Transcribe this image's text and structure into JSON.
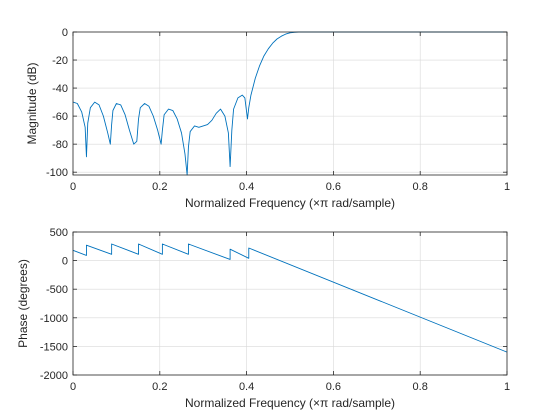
{
  "chart_data": [
    {
      "type": "line",
      "xlabel": "Normalized Frequency  (×π rad/sample)",
      "ylabel": "Magnitude (dB)",
      "xlim": [
        0,
        1
      ],
      "ylim": [
        -102,
        0
      ],
      "xticks": [
        0,
        0.2,
        0.4,
        0.6,
        0.8,
        1
      ],
      "xtick_labels": [
        "0",
        "0.2",
        "0.4",
        "0.6",
        "0.8",
        "1"
      ],
      "yticks": [
        0,
        -20,
        -40,
        -60,
        -80,
        -100
      ],
      "ytick_labels": [
        "0",
        "-20",
        "-40",
        "-60",
        "-80",
        "-100"
      ],
      "grid": true,
      "color": "#0072bd",
      "series": [
        {
          "x": [
            0,
            0.01,
            0.02,
            0.028,
            0.031,
            0.034,
            0.04,
            0.05,
            0.06,
            0.07,
            0.08,
            0.086,
            0.089,
            0.092,
            0.1,
            0.11,
            0.12,
            0.13,
            0.14,
            0.147,
            0.151,
            0.155,
            0.165,
            0.175,
            0.185,
            0.195,
            0.203,
            0.206,
            0.21,
            0.22,
            0.23,
            0.24,
            0.25,
            0.258,
            0.263,
            0.266,
            0.27,
            0.28,
            0.29,
            0.3,
            0.31,
            0.32,
            0.33,
            0.34,
            0.35,
            0.358,
            0.362,
            0.366,
            0.37,
            0.38,
            0.39,
            0.396,
            0.402,
            0.405,
            0.41,
            0.42,
            0.43,
            0.44,
            0.45,
            0.46,
            0.47,
            0.48,
            0.49,
            0.5,
            0.51,
            0.52,
            0.53,
            0.6,
            0.7,
            0.8,
            0.9,
            1.0
          ],
          "values": [
            -50,
            -51,
            -57,
            -68,
            -89,
            -65,
            -54,
            -50,
            -52,
            -60,
            -72,
            -80,
            -66,
            -56,
            -51,
            -52,
            -59,
            -70,
            -80,
            -78,
            -62,
            -54,
            -51,
            -53,
            -60,
            -70,
            -80,
            -70,
            -59,
            -55,
            -56,
            -62,
            -72,
            -87,
            -103,
            -82,
            -71,
            -67,
            -68,
            -67,
            -66,
            -63,
            -58,
            -55,
            -60,
            -72,
            -96,
            -70,
            -55,
            -47,
            -45,
            -47,
            -62,
            -54,
            -45,
            -33,
            -24,
            -17,
            -12,
            -8,
            -5,
            -3,
            -1.5,
            -0.6,
            -0.2,
            0,
            0,
            0,
            0,
            0,
            0,
            0
          ]
        }
      ]
    },
    {
      "type": "line",
      "xlabel": "Normalized Frequency  (×π rad/sample)",
      "ylabel": "Phase (degrees)",
      "xlim": [
        0,
        1
      ],
      "ylim": [
        -2000,
        500
      ],
      "xticks": [
        0,
        0.2,
        0.4,
        0.6,
        0.8,
        1
      ],
      "xtick_labels": [
        "0",
        "0.2",
        "0.4",
        "0.6",
        "0.8",
        "1"
      ],
      "yticks": [
        500,
        0,
        -500,
        -1000,
        -1500,
        -2000
      ],
      "ytick_labels": [
        "500",
        "0",
        "-500",
        "-1000",
        "-1500",
        "-2000"
      ],
      "grid": true,
      "color": "#0072bd",
      "series": [
        {
          "x": [
            0,
            0.031,
            0.031,
            0.089,
            0.089,
            0.151,
            0.151,
            0.206,
            0.206,
            0.266,
            0.266,
            0.362,
            0.362,
            0.405,
            0.405,
            1.0
          ],
          "values": [
            180,
            90,
            270,
            110,
            290,
            110,
            290,
            110,
            290,
            110,
            290,
            20,
            200,
            40,
            220,
            -1600
          ]
        }
      ]
    }
  ]
}
